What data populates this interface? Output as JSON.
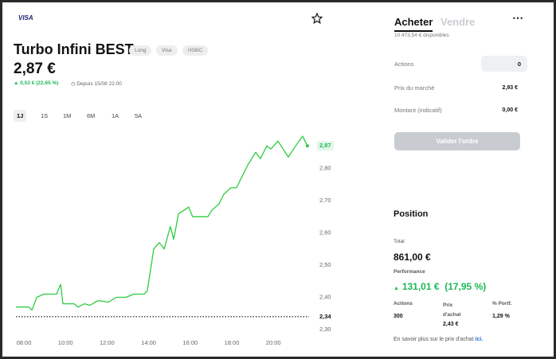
{
  "header": {
    "brand": "VISA",
    "title": "Turbo Infini BEST",
    "tags": [
      "Long",
      "Visa",
      "HSBC"
    ],
    "price": "2,87 €",
    "change": "0,53 € (22,65 %)",
    "since": "Depuis 15/08 22:00"
  },
  "periods": [
    "1J",
    "1S",
    "1M",
    "6M",
    "1A",
    "5A"
  ],
  "chart": {
    "type": "line",
    "color": "#2ecc40",
    "x": [
      8.0,
      8.61,
      8.77,
      9.0,
      9.34,
      9.95,
      10.15,
      10.26,
      10.8,
      10.99,
      11.3,
      11.56,
      11.95,
      12.44,
      12.83,
      13.29,
      13.67,
      14.17,
      14.32,
      14.63,
      14.9,
      15.13,
      15.43,
      15.59,
      15.82,
      16.08,
      16.31,
      16.5,
      17.23,
      17.42,
      17.77,
      18.0,
      18.34,
      18.61,
      18.84,
      19.15,
      19.53,
      19.76,
      20.07,
      20.26,
      20.6,
      21.1,
      21.56,
      21.79,
      22.02
    ],
    "values": [
      2.37,
      2.37,
      2.36,
      2.4,
      2.41,
      2.41,
      2.44,
      2.38,
      2.38,
      2.37,
      2.38,
      2.375,
      2.39,
      2.385,
      2.4,
      2.4,
      2.41,
      2.41,
      2.42,
      2.55,
      2.57,
      2.55,
      2.62,
      2.58,
      2.66,
      2.67,
      2.68,
      2.65,
      2.65,
      2.67,
      2.69,
      2.72,
      2.74,
      2.74,
      2.77,
      2.81,
      2.85,
      2.83,
      2.87,
      2.86,
      2.885,
      2.835,
      2.88,
      2.9,
      2.87
    ],
    "xlim": [
      8,
      22.1
    ],
    "xticks": [
      {
        "value": 8,
        "label": "08:00"
      },
      {
        "value": 10,
        "label": "10:00"
      },
      {
        "value": 12,
        "label": "12:00"
      },
      {
        "value": 14,
        "label": "14:00"
      },
      {
        "value": 16,
        "label": "16:00"
      },
      {
        "value": 18,
        "label": "18:00"
      },
      {
        "value": 20,
        "label": "20:00"
      }
    ],
    "ylim": [
      2.3,
      2.92
    ],
    "yticks": [
      {
        "value": 2.3,
        "label": "2,30"
      },
      {
        "value": 2.4,
        "label": "2,40"
      },
      {
        "value": 2.5,
        "label": "2,50"
      },
      {
        "value": 2.6,
        "label": "2,60"
      },
      {
        "value": 2.7,
        "label": "2,70"
      },
      {
        "value": 2.8,
        "label": "2,80"
      }
    ],
    "last": {
      "value": 2.87,
      "label": "2,87"
    },
    "reference": {
      "value": 2.34,
      "label": "2,34"
    }
  },
  "order": {
    "tabs": [
      "Acheter",
      "Vendre"
    ],
    "available": "10 473,54 € disponibles",
    "fields": [
      {
        "label": "Actions",
        "value": "0"
      },
      {
        "label": "Prix du marché",
        "value": "2,93 €"
      },
      {
        "label": "Montant (indicatif)",
        "value": "0,00 €"
      }
    ],
    "button": "Valider l'ordre"
  },
  "position": {
    "title": "Position",
    "total_label": "Total",
    "total": "861,00 €",
    "performance_label": "Performance",
    "performance": "131,01 €  (17,95 %)",
    "columns": [
      {
        "label": "Actions",
        "value": "300"
      },
      {
        "label": "Prix d'achat",
        "value": "2,43 €"
      },
      {
        "label": "% Portf.",
        "value": "1,29 %"
      }
    ],
    "note": "En savoir plus sur le prix d'achat",
    "link": "ici."
  }
}
